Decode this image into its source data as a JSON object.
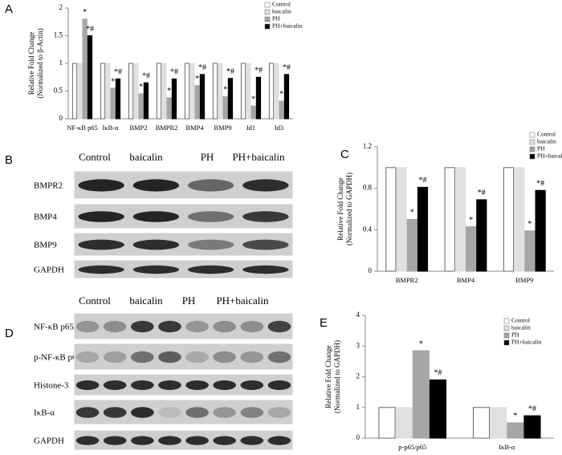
{
  "chart_data": [
    {
      "type": "bar",
      "label": "A",
      "ylabel": [
        "Relative Fold Change",
        "(Normalized to β-Actin)"
      ],
      "categories": [
        "NF-κB p65",
        "IκB-α",
        "BMP2",
        "BMPR2",
        "BMP4",
        "BMP9",
        "Id1",
        "Id3"
      ],
      "ylim": [
        0,
        2
      ],
      "yticks": [
        0,
        0.5,
        1,
        1.5,
        2
      ],
      "series": [
        {
          "name": "Control",
          "color": "#ffffff",
          "values": [
            1,
            1,
            1,
            1,
            1,
            1,
            1,
            1
          ]
        },
        {
          "name": "baicalin",
          "color": "#e0e0e0",
          "values": [
            1,
            1,
            1,
            1,
            1,
            1,
            1,
            1
          ]
        },
        {
          "name": "PH",
          "color": "#a6a6a6",
          "values": [
            1.8,
            0.55,
            0.45,
            0.38,
            0.6,
            0.4,
            0.23,
            0.32
          ],
          "annotations": [
            "*",
            "*",
            "*",
            "*",
            "*",
            "*",
            "*",
            "*"
          ]
        },
        {
          "name": "PH+baicalin",
          "color": "#000000",
          "values": [
            1.5,
            0.72,
            0.65,
            0.72,
            0.8,
            0.73,
            0.75,
            0.8
          ],
          "annotations": [
            "*#",
            "*#",
            "*#",
            "*#",
            "*#",
            "*#",
            "*#",
            "*#"
          ]
        }
      ]
    },
    {
      "type": "bar",
      "label": "C",
      "ylabel": [
        "Relative Fold Change",
        "(Normalized to GAPDH)"
      ],
      "categories": [
        "BMPR2",
        "BMP4",
        "BMP9"
      ],
      "ylim": [
        0,
        1.2
      ],
      "yticks": [
        0,
        0.4,
        0.8,
        1.2
      ],
      "series": [
        {
          "name": "Control",
          "color": "#ffffff",
          "values": [
            1,
            1,
            1
          ]
        },
        {
          "name": "baicalin",
          "color": "#e0e0e0",
          "values": [
            1,
            1,
            1
          ]
        },
        {
          "name": "PH",
          "color": "#a6a6a6",
          "values": [
            0.5,
            0.43,
            0.39
          ],
          "annotations": [
            "*",
            "*",
            "*"
          ]
        },
        {
          "name": "PH+baicalin",
          "color": "#000000",
          "values": [
            0.81,
            0.69,
            0.78
          ],
          "annotations": [
            "*#",
            "*#",
            "*#"
          ]
        }
      ]
    },
    {
      "type": "bar",
      "label": "E",
      "ylabel": [
        "Relative Fold Change",
        "(Normalized to GAPDH)"
      ],
      "categories": [
        "p-p65/p65",
        "IκB-α"
      ],
      "ylim": [
        0,
        4
      ],
      "yticks": [
        0,
        1,
        2,
        3,
        4
      ],
      "series": [
        {
          "name": "Control",
          "color": "#ffffff",
          "values": [
            1,
            1
          ]
        },
        {
          "name": "baicalin",
          "color": "#e0e0e0",
          "values": [
            1,
            1
          ]
        },
        {
          "name": "PH",
          "color": "#a6a6a6",
          "values": [
            2.85,
            0.5
          ],
          "annotations": [
            "*",
            "*"
          ]
        },
        {
          "name": "PH+baicalin",
          "color": "#000000",
          "values": [
            1.9,
            0.73
          ],
          "annotations": [
            "*#",
            "*#"
          ]
        }
      ]
    }
  ],
  "blots": [
    {
      "label": "B",
      "columns": [
        "Control",
        "baicalin",
        "PH",
        "PH+baicalin"
      ],
      "rows": [
        "BMPR2",
        "BMP4",
        "BMP9",
        "GAPDH"
      ]
    },
    {
      "label": "D",
      "columns": [
        "Control",
        "baicalin",
        "PH",
        "PH+baicalin"
      ],
      "rows": [
        "NF-κB p65",
        "p-NF-κB p65",
        "Histone-3",
        "IκB-α",
        "GAPDH"
      ]
    }
  ]
}
